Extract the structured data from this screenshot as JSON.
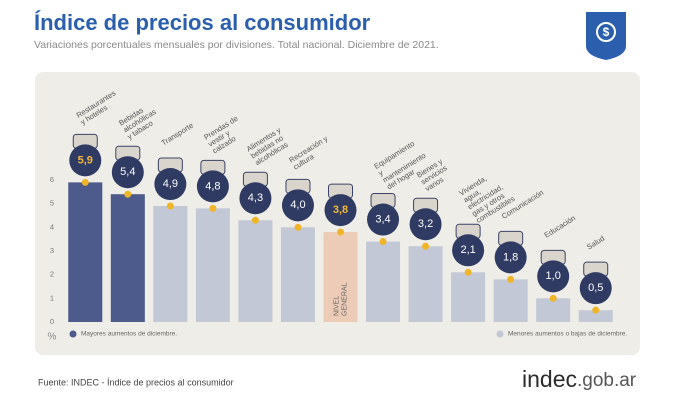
{
  "chart_data": {
    "type": "bar",
    "title": "Índice de precios al consumidor",
    "subtitle": "Variaciones porcentuales mensuales por divisiones. Total nacional. Diciembre de 2021.",
    "categories": [
      "Restaurantes y hoteles",
      "Bebidas alcohólicas y tabaco",
      "Transporte",
      "Prendas de vestir y calzado",
      "Alimentos y bebidas no alcohólicas",
      "Recreación y cultura",
      "NIVEL GENERAL",
      "Equipamiento y mantenimiento del hogar",
      "Bienes y servicios varios",
      "Vivienda, agua, electricidad, gas y otros combustibles",
      "Comunicación",
      "Educación",
      "Salud"
    ],
    "values": [
      5.9,
      5.4,
      4.9,
      4.8,
      4.3,
      4.0,
      3.8,
      3.4,
      3.2,
      2.1,
      1.8,
      1.0,
      0.5
    ],
    "value_labels": [
      "5,9",
      "5,4",
      "4,9",
      "4,8",
      "4,3",
      "4,0",
      "3,8",
      "3,4",
      "3,2",
      "2,1",
      "1,8",
      "1,0",
      "0,5"
    ],
    "colors": [
      "#4c5b8c",
      "#4c5b8c",
      "#c3c8d6",
      "#c3c8d6",
      "#c3c8d6",
      "#c3c8d6",
      "#ecccb6",
      "#c3c8d6",
      "#c3c8d6",
      "#c3c8d6",
      "#c3c8d6",
      "#c3c8d6",
      "#c3c8d6"
    ],
    "label_colors": [
      "#f3b73a",
      "#ffffff",
      "#ffffff",
      "#ffffff",
      "#ffffff",
      "#ffffff",
      "#f3b73a",
      "#ffffff",
      "#ffffff",
      "#ffffff",
      "#ffffff",
      "#ffffff",
      "#ffffff"
    ],
    "ylim": [
      0,
      6
    ],
    "yticks": [
      0,
      1,
      2,
      3,
      4,
      5,
      6
    ],
    "y_label": "%",
    "legend": [
      "Mayores aumentos de diciembre.",
      "Menores aumentos o bajas de diciembre."
    ],
    "source": "Fuente: INDEC - Índice de precios al consumidor",
    "logo": [
      "indec",
      ".gob.ar"
    ]
  }
}
